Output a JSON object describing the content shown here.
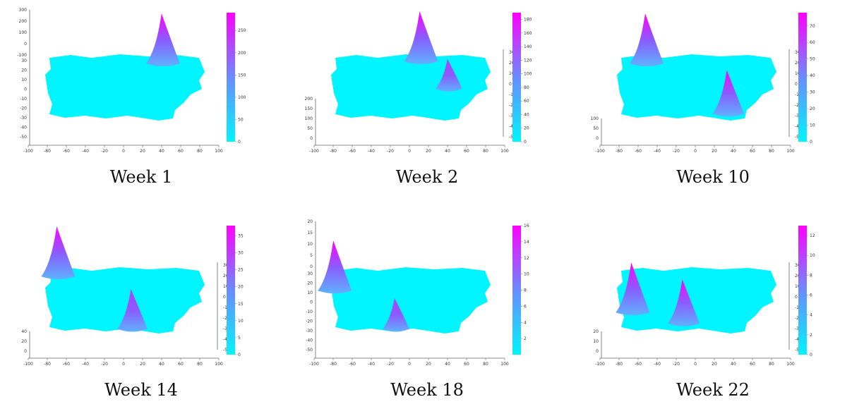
{
  "colors": {
    "low": "#00f5ff",
    "high": "#ff00ff",
    "axis": "#666666"
  },
  "chart_data": [
    {
      "type": "heatmap",
      "title": "Week 1",
      "x_ticks": [
        "-100",
        "-80",
        "-60",
        "-40",
        "-20",
        "0",
        "20",
        "40",
        "60",
        "80",
        "100"
      ],
      "z_ticks": [
        "300",
        "200",
        "100",
        "0",
        "-100"
      ],
      "y_ticks": [
        "30",
        "20",
        "10",
        "0",
        "-10",
        "-20",
        "-30",
        "-40",
        "-50"
      ],
      "colorbar_ticks": [
        "250",
        "200",
        "150",
        "100",
        "50",
        "0"
      ],
      "colorbar_range": [
        0,
        290
      ],
      "peaks": [
        {
          "x": 45,
          "y": 28,
          "value": 290
        }
      ]
    },
    {
      "type": "heatmap",
      "title": "Week 2",
      "x_ticks": [
        "-100",
        "-80",
        "-60",
        "-40",
        "-20",
        "0",
        "20",
        "40",
        "60",
        "80",
        "100"
      ],
      "z_ticks": [
        "200",
        "150",
        "100",
        "50",
        "0"
      ],
      "y_ticks": [
        "30",
        "20",
        "10",
        "0",
        "-10",
        "-20",
        "-30",
        "-40",
        "-50"
      ],
      "colorbar_ticks": [
        "180",
        "160",
        "140",
        "120",
        "100",
        "80",
        "60",
        "40",
        "20",
        "0"
      ],
      "colorbar_range": [
        0,
        190
      ],
      "peaks": [
        {
          "x": 15,
          "y": 30,
          "value": 190
        },
        {
          "x": 45,
          "y": 5,
          "value": 90
        }
      ]
    },
    {
      "type": "heatmap",
      "title": "Week 10",
      "x_ticks": [
        "-100",
        "-80",
        "-60",
        "-40",
        "-20",
        "0",
        "20",
        "40",
        "60",
        "80",
        "100"
      ],
      "z_ticks": [
        "100",
        "50",
        "0"
      ],
      "y_ticks": [
        "30",
        "20",
        "10",
        "0",
        "-10",
        "-20",
        "-30",
        "-40",
        "-50"
      ],
      "colorbar_ticks": [
        "70",
        "60",
        "50",
        "40",
        "30",
        "20",
        "10",
        "0"
      ],
      "colorbar_range": [
        0,
        78
      ],
      "peaks": [
        {
          "x": -50,
          "y": 28,
          "value": 78
        },
        {
          "x": 38,
          "y": -18,
          "value": 65
        }
      ]
    },
    {
      "type": "heatmap",
      "title": "Week 14",
      "x_ticks": [
        "-100",
        "-80",
        "-60",
        "-40",
        "-20",
        "0",
        "20",
        "40",
        "60",
        "80",
        "100"
      ],
      "z_ticks": [
        "40",
        "20",
        "0"
      ],
      "y_ticks": [
        "30",
        "20",
        "10",
        "0",
        "-10",
        "-20",
        "-30",
        "-40",
        "-50"
      ],
      "colorbar_ticks": [
        "35",
        "30",
        "25",
        "20",
        "15",
        "10",
        "5",
        "0"
      ],
      "colorbar_range": [
        0,
        38
      ],
      "peaks": [
        {
          "x": -68,
          "y": 28,
          "value": 38
        },
        {
          "x": 12,
          "y": -20,
          "value": 28
        }
      ]
    },
    {
      "type": "heatmap",
      "title": "Week 18",
      "x_ticks": [
        "-100",
        "-80",
        "-60",
        "-40",
        "-20",
        "0",
        "20",
        "40",
        "60",
        "80",
        "100"
      ],
      "z_ticks": [
        "20",
        "15",
        "10",
        "5",
        "0"
      ],
      "y_ticks": [
        "30",
        "20",
        "10",
        "0",
        "-10",
        "-20",
        "-30",
        "-40",
        "-50"
      ],
      "colorbar_ticks": [
        "16",
        "14",
        "12",
        "10",
        "8",
        "6",
        "4",
        "2"
      ],
      "colorbar_range": [
        0,
        16
      ],
      "peaks": [
        {
          "x": -78,
          "y": 15,
          "value": 16
        },
        {
          "x": -12,
          "y": -20,
          "value": 8
        }
      ]
    },
    {
      "type": "heatmap",
      "title": "Week 22",
      "x_ticks": [
        "-100",
        "-80",
        "-60",
        "-40",
        "-20",
        "0",
        "20",
        "40",
        "60",
        "80",
        "100"
      ],
      "z_ticks": [
        "20",
        "10",
        "0"
      ],
      "y_ticks": [
        "30",
        "20",
        "10",
        "0",
        "-10",
        "-20",
        "-30",
        "-40",
        "-50"
      ],
      "colorbar_ticks": [
        "12",
        "10",
        "8",
        "6",
        "4",
        "2",
        "0"
      ],
      "colorbar_range": [
        0,
        13
      ],
      "peaks": [
        {
          "x": -65,
          "y": -5,
          "value": 13
        },
        {
          "x": -10,
          "y": -15,
          "value": 11
        }
      ]
    }
  ]
}
